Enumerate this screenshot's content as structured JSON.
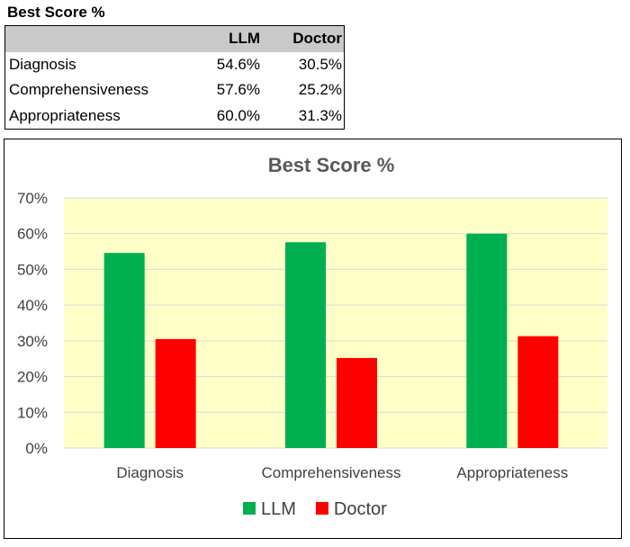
{
  "table": {
    "title": "Best Score %",
    "headers": [
      "",
      "LLM",
      "Doctor"
    ],
    "rows": [
      {
        "label": "Diagnosis",
        "llm": "54.6%",
        "doctor": "30.5%"
      },
      {
        "label": "Comprehensiveness",
        "llm": "57.6%",
        "doctor": "25.2%"
      },
      {
        "label": "Appropriateness",
        "llm": "60.0%",
        "doctor": "31.3%"
      }
    ]
  },
  "chart_data": {
    "type": "bar",
    "title": "Best Score %",
    "categories": [
      "Diagnosis",
      "Comprehensiveness",
      "Appropriateness"
    ],
    "series": [
      {
        "name": "LLM",
        "values": [
          54.6,
          57.6,
          60.0
        ],
        "color": "#00b050"
      },
      {
        "name": "Doctor",
        "values": [
          30.5,
          25.2,
          31.3
        ],
        "color": "#ff0000"
      }
    ],
    "ylim": [
      0,
      70
    ],
    "yticks": [
      "0%",
      "10%",
      "20%",
      "30%",
      "40%",
      "50%",
      "60%",
      "70%"
    ],
    "plot_background": "#ffffc8",
    "grid": true,
    "legend_position": "bottom"
  }
}
